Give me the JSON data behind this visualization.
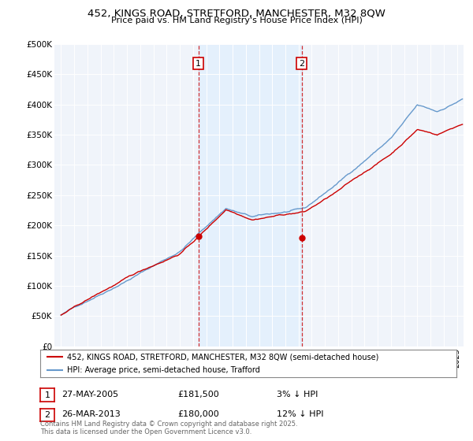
{
  "title": "452, KINGS ROAD, STRETFORD, MANCHESTER, M32 8QW",
  "subtitle": "Price paid vs. HM Land Registry's House Price Index (HPI)",
  "legend_line1": "452, KINGS ROAD, STRETFORD, MANCHESTER, M32 8QW (semi-detached house)",
  "legend_line2": "HPI: Average price, semi-detached house, Trafford",
  "footnote": "Contains HM Land Registry data © Crown copyright and database right 2025.\nThis data is licensed under the Open Government Licence v3.0.",
  "property_color": "#cc0000",
  "hpi_color": "#6699cc",
  "vline_color": "#cc0000",
  "shade_color": "#ddeeff",
  "marker1_year": 2005.41,
  "marker2_year": 2013.23,
  "sale1_price": 181500,
  "sale2_price": 180000,
  "table_data": [
    {
      "num": "1",
      "date": "27-MAY-2005",
      "price": "£181,500",
      "vs_hpi": "3% ↓ HPI"
    },
    {
      "num": "2",
      "date": "26-MAR-2013",
      "price": "£180,000",
      "vs_hpi": "12% ↓ HPI"
    }
  ],
  "ylim": [
    0,
    500000
  ],
  "yticks": [
    0,
    50000,
    100000,
    150000,
    200000,
    250000,
    300000,
    350000,
    400000,
    450000,
    500000
  ],
  "ytick_labels": [
    "£0",
    "£50K",
    "£100K",
    "£150K",
    "£200K",
    "£250K",
    "£300K",
    "£350K",
    "£400K",
    "£450K",
    "£500K"
  ],
  "xlim_start": 1994.5,
  "xlim_end": 2025.5,
  "background_color": "#ffffff"
}
